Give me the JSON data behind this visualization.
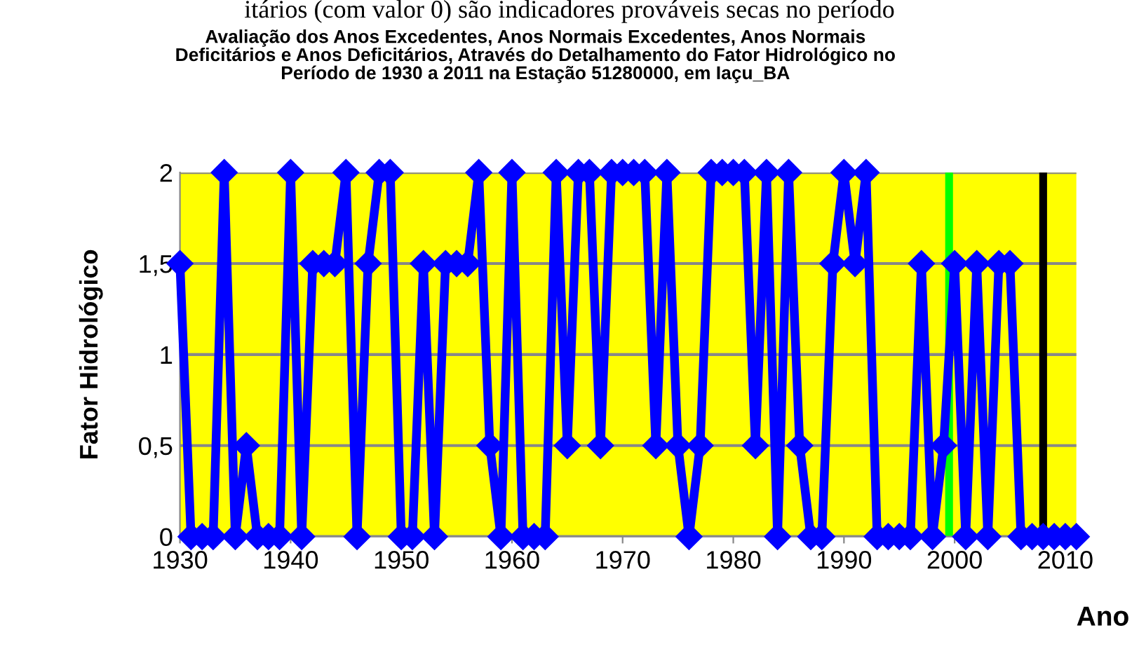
{
  "chart_data": {
    "type": "line",
    "title": "Avaliação dos Anos Excedentes, Anos Normais Excedentes, Anos Normais\nDeficitários e Anos Deficitários, Através do Detalhamento do Fator Hidrológico no\nPeríodo de 1930 a 2011 na Estação 51280000, em Iaçu_BA",
    "ylabel": "Fator Hidrológico",
    "xlabel": "Ano",
    "annotations": [
      "itários (com valor 0) são indicadores prováveis secas no período"
    ],
    "x": [
      1930,
      1931,
      1932,
      1933,
      1934,
      1935,
      1936,
      1937,
      1938,
      1939,
      1940,
      1941,
      1942,
      1943,
      1944,
      1945,
      1946,
      1947,
      1948,
      1949,
      1950,
      1951,
      1952,
      1953,
      1954,
      1955,
      1956,
      1957,
      1958,
      1959,
      1960,
      1961,
      1962,
      1963,
      1964,
      1965,
      1966,
      1967,
      1968,
      1969,
      1970,
      1971,
      1972,
      1973,
      1974,
      1975,
      1976,
      1977,
      1978,
      1979,
      1980,
      1981,
      1982,
      1983,
      1984,
      1985,
      1986,
      1987,
      1988,
      1989,
      1990,
      1991,
      1992,
      1993,
      1994,
      1995,
      1996,
      1997,
      1998,
      1999,
      2000,
      2001,
      2002,
      2003,
      2004,
      2005,
      2006,
      2007,
      2008,
      2009,
      2010,
      2011
    ],
    "series": [
      {
        "color": "#0000ff",
        "values": [
          1.5,
          0,
          0,
          0,
          2,
          0,
          0.5,
          0,
          0,
          0,
          2,
          0,
          1.5,
          1.5,
          1.5,
          2,
          0,
          1.5,
          2,
          2,
          0,
          0,
          1.5,
          0,
          1.5,
          1.5,
          1.5,
          2,
          0.5,
          0,
          2,
          0,
          0,
          0,
          2,
          0.5,
          2,
          2,
          0.5,
          2,
          2,
          2,
          2,
          0.5,
          2,
          0.5,
          0,
          0.5,
          2,
          2,
          2,
          2,
          0.5,
          2,
          0,
          2,
          0.5,
          0,
          0,
          1.5,
          2,
          1.5,
          2,
          0,
          0,
          0,
          0,
          1.5,
          0,
          0.5,
          1.5,
          0,
          1.5,
          0,
          1.5,
          1.5,
          0,
          0,
          0,
          0,
          0,
          0
        ]
      }
    ],
    "xlim": [
      1930,
      2011
    ],
    "ylim": [
      0,
      2
    ],
    "xticks": [
      1930,
      1940,
      1950,
      1960,
      1970,
      1980,
      1990,
      2000,
      2010
    ],
    "yticks": [
      {
        "value": 0,
        "label": "0"
      },
      {
        "value": 0.5,
        "label": "0,5"
      },
      {
        "value": 1,
        "label": "1"
      },
      {
        "value": 1.5,
        "label": "1,5"
      },
      {
        "value": 2,
        "label": "2"
      }
    ],
    "ref_lines": [
      {
        "axis": "x",
        "value": 1999.5,
        "color": "#00ff00"
      },
      {
        "axis": "x",
        "value": 2008,
        "color": "#000000"
      }
    ],
    "grid": "y",
    "marker": "diamond",
    "line_style": "solid",
    "legend": false
  }
}
